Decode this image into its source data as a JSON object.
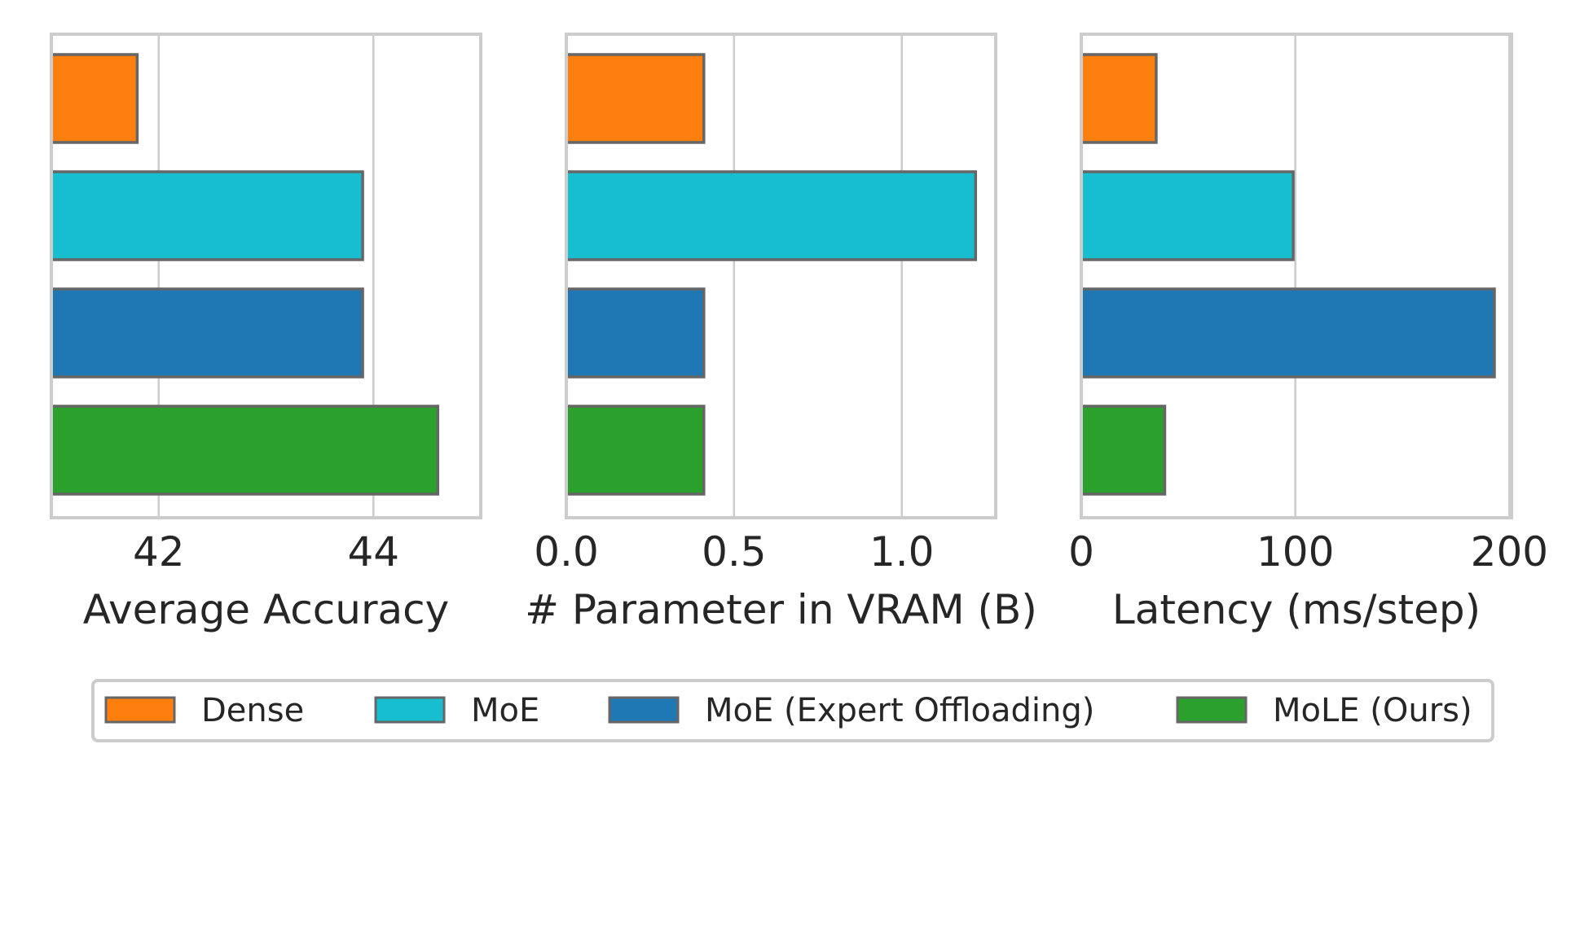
{
  "chart_data": [
    {
      "type": "bar",
      "orientation": "horizontal",
      "xlabel": "Average Accuracy",
      "xlim": [
        41,
        45
      ],
      "ticks": [
        42,
        44
      ],
      "tick_labels": [
        "42",
        "44"
      ],
      "grid": true,
      "series": [
        {
          "name": "Dense",
          "value": 41.8
        },
        {
          "name": "MoE",
          "value": 43.9
        },
        {
          "name": "MoE (Expert Offloading)",
          "value": 43.9
        },
        {
          "name": "MoLE (Ours)",
          "value": 44.6
        }
      ]
    },
    {
      "type": "bar",
      "orientation": "horizontal",
      "xlabel": "# Parameter in VRAM (B)",
      "xlim": [
        0,
        1.28
      ],
      "ticks": [
        0,
        0.5,
        1.0
      ],
      "tick_labels": [
        "0.0",
        "0.5",
        "1.0"
      ],
      "grid": true,
      "series": [
        {
          "name": "Dense",
          "value": 0.41
        },
        {
          "name": "MoE",
          "value": 1.22
        },
        {
          "name": "MoE (Expert Offloading)",
          "value": 0.41
        },
        {
          "name": "MoLE (Ours)",
          "value": 0.41
        }
      ]
    },
    {
      "type": "bar",
      "orientation": "horizontal",
      "xlabel": "Latency (ms/step)",
      "xlim": [
        0,
        201
      ],
      "ticks": [
        0,
        100,
        200
      ],
      "tick_labels": [
        "0",
        "100",
        "200"
      ],
      "grid": true,
      "series": [
        {
          "name": "Dense",
          "value": 35
        },
        {
          "name": "MoE",
          "value": 99
        },
        {
          "name": "MoE (Expert Offloading)",
          "value": 193
        },
        {
          "name": "MoLE (Ours)",
          "value": 39
        }
      ]
    }
  ],
  "legend": {
    "placement": "bottom-center",
    "items": [
      {
        "label": "Dense",
        "color": "#ff7f0e"
      },
      {
        "label": "MoE",
        "color": "#17becf"
      },
      {
        "label": "MoE (Expert Offloading)",
        "color": "#1f77b4"
      },
      {
        "label": "MoLE (Ours)",
        "color": "#2ca02c"
      }
    ]
  },
  "colors": {
    "bar_edge": "#666666",
    "frame": "#cccccc",
    "grid": "#cccccc",
    "text": "#262626"
  }
}
